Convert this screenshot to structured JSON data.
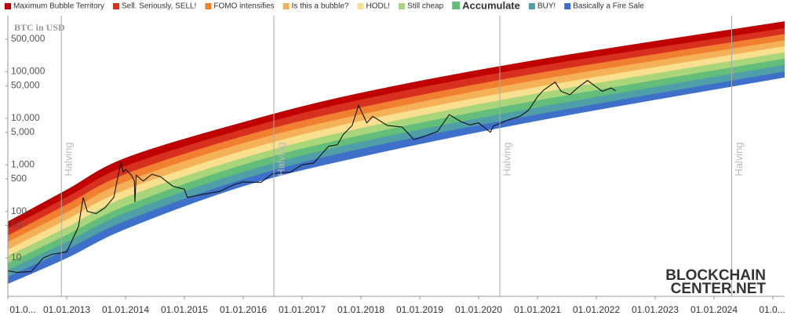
{
  "chart_data": {
    "type": "area",
    "y_label": "BTC in USD",
    "log_y": true,
    "xlim": [
      2012,
      2025.2
    ],
    "ylim": [
      1.5,
      1600000
    ],
    "xticks": [
      {
        "value": 2012,
        "label": "01.0..."
      },
      {
        "value": 2013,
        "label": "01.01.2013"
      },
      {
        "value": 2014,
        "label": "01.01.2014"
      },
      {
        "value": 2015,
        "label": "01.01.2015"
      },
      {
        "value": 2016,
        "label": "01.01.2016"
      },
      {
        "value": 2017,
        "label": "01.01.2017"
      },
      {
        "value": 2018,
        "label": "01.01.2018"
      },
      {
        "value": 2019,
        "label": "01.01.2019"
      },
      {
        "value": 2020,
        "label": "01.01.2020"
      },
      {
        "value": 2021,
        "label": "01.01.2021"
      },
      {
        "value": 2022,
        "label": "01.01.2022"
      },
      {
        "value": 2023,
        "label": "01.01.2023"
      },
      {
        "value": 2024,
        "label": "01.01.2024"
      },
      {
        "value": 2025,
        "label": "01.0..."
      }
    ],
    "yticks": [
      10,
      50,
      100,
      500,
      {
        "value": 1000,
        "label": "1,000"
      },
      {
        "value": 5000,
        "label": "5,000"
      },
      {
        "value": 10000,
        "label": "10,000"
      },
      {
        "value": 50000,
        "label": "50,000"
      },
      {
        "value": 100000,
        "label": "100,000"
      },
      {
        "value": 500000,
        "label": "500,000"
      }
    ],
    "band_x": [
      2012,
      2013,
      2014,
      2016,
      2018,
      2021,
      2025.2
    ],
    "series": [
      {
        "name": "Maximum Bubble Territory",
        "color": "#c00000",
        "values": [
          60,
          290,
          1400,
          8200,
          35000,
          180000,
          1200000
        ]
      },
      {
        "name": "Sell. Seriously, SELL!",
        "color": "#d7301f",
        "values": [
          43,
          200,
          930,
          5800,
          25000,
          130000,
          860000
        ]
      },
      {
        "name": "FOMO intensifies",
        "color": "#f07f2f",
        "values": [
          30,
          140,
          630,
          4100,
          17000,
          92000,
          640000
        ]
      },
      {
        "name": "Is this a bubble?",
        "color": "#f5b158",
        "values": [
          22,
          95,
          430,
          2900,
          12000,
          66000,
          470000
        ]
      },
      {
        "name": "HODL!",
        "color": "#f8e08e",
        "values": [
          15,
          66,
          290,
          2000,
          8700,
          47000,
          350000
        ]
      },
      {
        "name": "Still cheap",
        "color": "#a9d67a",
        "values": [
          11,
          45,
          200,
          1400,
          6100,
          34000,
          260000
        ]
      },
      {
        "name": "Accumulate",
        "color": "#63be7b",
        "values": [
          7.7,
          31,
          130,
          1000,
          4300,
          24000,
          190000
        ]
      },
      {
        "name": "BUY!",
        "color": "#4f9fa8",
        "values": [
          5.5,
          22,
          92,
          700,
          3100,
          17000,
          140000
        ]
      },
      {
        "name": "Basically a Fire Sale",
        "color": "#3e6fc9",
        "values": [
          3.9,
          15,
          62,
          490,
          2200,
          12000,
          100000
        ]
      }
    ],
    "band_floor": [
      2.8,
      10,
      42,
      350,
      1500,
      8900,
      76000
    ],
    "price": {
      "color": "#111111",
      "x": [
        2012.0,
        2012.15,
        2012.4,
        2012.6,
        2012.75,
        2013.0,
        2013.2,
        2013.28,
        2013.35,
        2013.5,
        2013.65,
        2013.8,
        2013.92,
        2013.96,
        2014.0,
        2014.1,
        2014.15,
        2014.16,
        2014.18,
        2014.3,
        2014.45,
        2014.6,
        2014.8,
        2015.0,
        2015.05,
        2015.3,
        2015.6,
        2015.85,
        2016.0,
        2016.3,
        2016.5,
        2016.8,
        2017.0,
        2017.2,
        2017.45,
        2017.6,
        2017.7,
        2017.85,
        2017.96,
        2018.1,
        2018.2,
        2018.45,
        2018.7,
        2018.9,
        2019.0,
        2019.3,
        2019.5,
        2019.7,
        2019.85,
        2020.0,
        2020.2,
        2020.25,
        2020.5,
        2020.7,
        2020.85,
        2021.0,
        2021.1,
        2021.3,
        2021.4,
        2021.55,
        2021.7,
        2021.85,
        2022.0,
        2022.1,
        2022.25,
        2022.33
      ],
      "values": [
        5.3,
        4.9,
        5.1,
        10,
        12,
        13.5,
        47,
        200,
        100,
        90,
        120,
        200,
        1150,
        700,
        800,
        600,
        450,
        160,
        600,
        450,
        630,
        550,
        350,
        300,
        200,
        230,
        270,
        380,
        430,
        420,
        650,
        700,
        1000,
        1100,
        2500,
        2700,
        4500,
        7000,
        19000,
        8000,
        11000,
        7000,
        6500,
        3500,
        3800,
        5200,
        12000,
        8500,
        7200,
        8000,
        5000,
        6800,
        9200,
        11000,
        15000,
        29000,
        40000,
        60000,
        38000,
        32000,
        47000,
        65000,
        47000,
        38000,
        45000,
        39000
      ]
    },
    "annotations": [
      {
        "x": 2012.91,
        "text": "Halving"
      },
      {
        "x": 2016.52,
        "text": "Halving"
      },
      {
        "x": 2020.36,
        "text": "Halving"
      },
      {
        "x": 2024.3,
        "text": "Halving"
      }
    ],
    "watermark": [
      "BLOCKCHAIN",
      "CENTER.NET"
    ]
  }
}
